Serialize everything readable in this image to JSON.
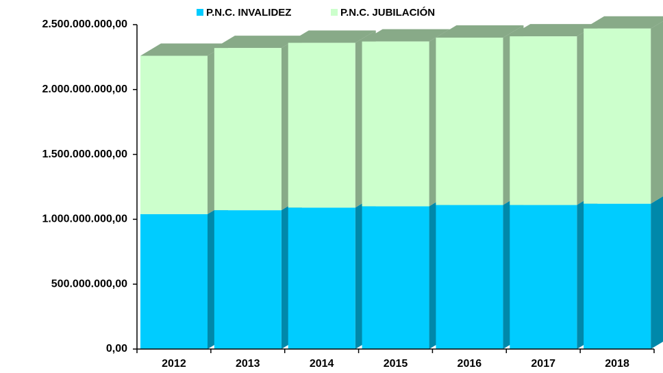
{
  "chart_data": {
    "type": "bar3d_stacked",
    "categories": [
      "2012",
      "2013",
      "2014",
      "2015",
      "2016",
      "2017",
      "2018"
    ],
    "series": [
      {
        "name": "P.N.C. INVALIDEZ",
        "color": "#00ccff",
        "side_color": "#0088aa",
        "values": [
          1040000000,
          1070000000,
          1090000000,
          1100000000,
          1110000000,
          1110000000,
          1120000000
        ]
      },
      {
        "name": "P.N.C. JUBILACIÓN",
        "color": "#ccffcc",
        "side_color": "#88aa88",
        "values": [
          1220000000,
          1250000000,
          1270000000,
          1270000000,
          1290000000,
          1300000000,
          1350000000
        ]
      }
    ],
    "ylim": [
      0,
      2500000000
    ],
    "yticks": [
      {
        "value": 0,
        "label": "0,00"
      },
      {
        "value": 500000000,
        "label": "500.000.000,00"
      },
      {
        "value": 1000000000,
        "label": "1.000.000.000,00"
      },
      {
        "value": 1500000000,
        "label": "1.500.000.000,00"
      },
      {
        "value": 2000000000,
        "label": "2.000.000.000,00"
      },
      {
        "value": 2500000000,
        "label": "2.500.000.000,00"
      }
    ],
    "legend": "top"
  }
}
